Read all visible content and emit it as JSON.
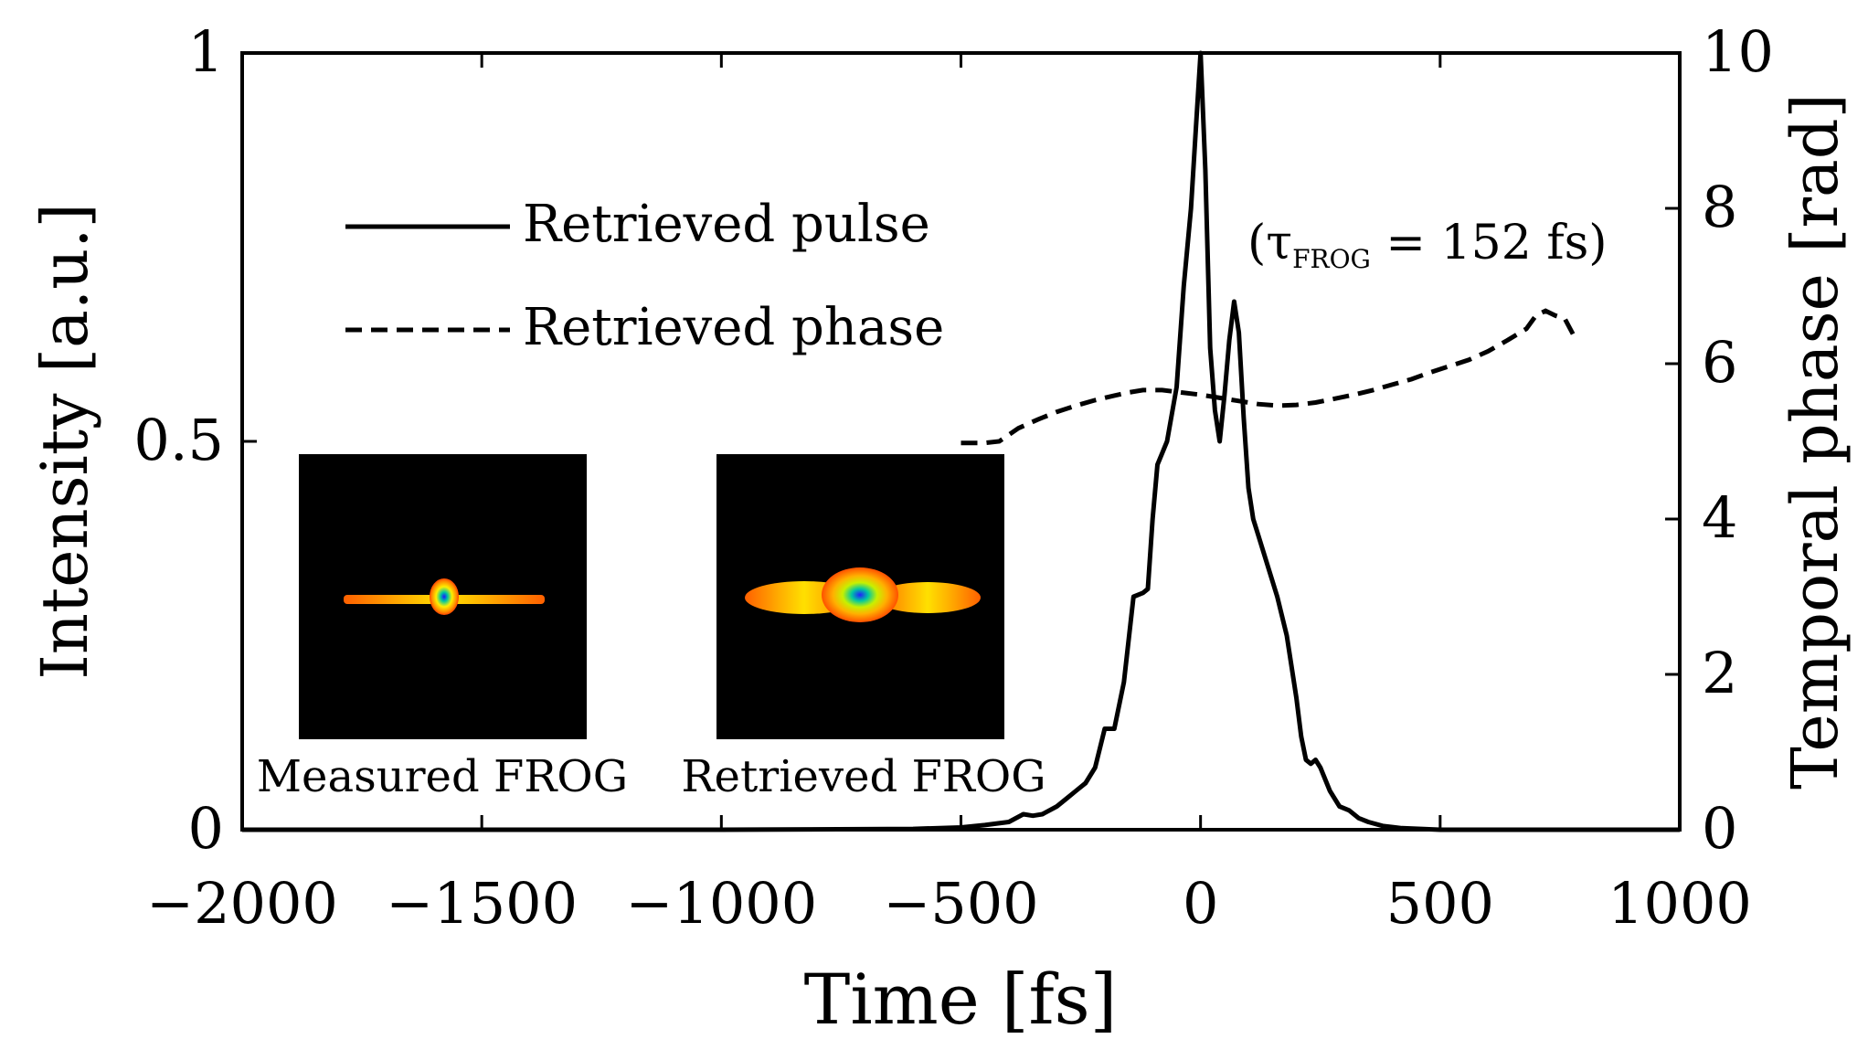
{
  "chart_data": {
    "type": "line",
    "title": "",
    "xlabel": "Time [fs]",
    "ylabel_left": "Intensity [a.u.]",
    "ylabel_right": "Temporal phase [rad]",
    "xlim": [
      -2000,
      1000
    ],
    "ylim_left": [
      0,
      1
    ],
    "ylim_right": [
      0,
      10
    ],
    "x_ticks": [
      {
        "value": -2000,
        "label": "−2000"
      },
      {
        "value": -1500,
        "label": "−1500"
      },
      {
        "value": -1000,
        "label": "−1000"
      },
      {
        "value": -500,
        "label": "−500"
      },
      {
        "value": 0,
        "label": "0"
      },
      {
        "value": 500,
        "label": "500"
      },
      {
        "value": 1000,
        "label": "1000"
      }
    ],
    "y_left_ticks": [
      {
        "value": 0,
        "label": "0"
      },
      {
        "value": 0.5,
        "label": "0.5"
      },
      {
        "value": 1,
        "label": "1"
      }
    ],
    "y_right_ticks": [
      {
        "value": 0,
        "label": "0"
      },
      {
        "value": 2,
        "label": "2"
      },
      {
        "value": 4,
        "label": "4"
      },
      {
        "value": 6,
        "label": "6"
      },
      {
        "value": 8,
        "label": "8"
      },
      {
        "value": 10,
        "label": "10"
      }
    ],
    "legend": {
      "placement": "upper-left",
      "entries": [
        {
          "label": "Retrieved pulse",
          "style": "solid"
        },
        {
          "label": "Retrieved phase",
          "style": "dashed"
        }
      ]
    },
    "annotation": {
      "prefix": "(τ",
      "subscript": "FROG",
      "suffix": " = 152 fs)"
    },
    "insets": [
      {
        "caption": "Measured FROG"
      },
      {
        "caption": "Retrieved FROG"
      }
    ],
    "series": [
      {
        "name": "Retrieved pulse",
        "axis": "left",
        "style": "solid",
        "x": [
          -2000,
          -1000,
          -600,
          -500,
          -450,
          -400,
          -370,
          -350,
          -330,
          -300,
          -280,
          -260,
          -240,
          -220,
          -200,
          -180,
          -160,
          -140,
          -120,
          -110,
          -100,
          -90,
          -70,
          -50,
          -35,
          -20,
          -10,
          0,
          10,
          20,
          30,
          40,
          50,
          60,
          70,
          80,
          90,
          100,
          110,
          120,
          140,
          160,
          180,
          200,
          210,
          220,
          230,
          240,
          250,
          270,
          290,
          310,
          330,
          350,
          380,
          420,
          460,
          500,
          700,
          1000
        ],
        "y": [
          0,
          0,
          0.001,
          0.003,
          0.006,
          0.01,
          0.02,
          0.018,
          0.02,
          0.03,
          0.04,
          0.05,
          0.06,
          0.08,
          0.13,
          0.13,
          0.19,
          0.3,
          0.305,
          0.31,
          0.4,
          0.47,
          0.5,
          0.57,
          0.7,
          0.8,
          0.9,
          1.0,
          0.85,
          0.62,
          0.54,
          0.5,
          0.56,
          0.63,
          0.68,
          0.64,
          0.53,
          0.44,
          0.4,
          0.38,
          0.34,
          0.3,
          0.25,
          0.17,
          0.12,
          0.09,
          0.085,
          0.09,
          0.08,
          0.05,
          0.03,
          0.025,
          0.015,
          0.01,
          0.005,
          0.002,
          0.001,
          0,
          0,
          0
        ]
      },
      {
        "name": "Retrieved phase",
        "axis": "right",
        "style": "dashed",
        "x": [
          -500,
          -450,
          -420,
          -380,
          -340,
          -300,
          -260,
          -220,
          -180,
          -150,
          -120,
          -80,
          -40,
          0,
          40,
          80,
          120,
          160,
          200,
          240,
          280,
          320,
          360,
          400,
          440,
          480,
          520,
          560,
          600,
          640,
          680,
          700,
          720,
          740,
          760,
          780
        ],
        "y": [
          4.98,
          4.98,
          5.0,
          5.17,
          5.28,
          5.38,
          5.46,
          5.53,
          5.59,
          5.63,
          5.66,
          5.66,
          5.63,
          5.6,
          5.56,
          5.52,
          5.48,
          5.46,
          5.47,
          5.5,
          5.55,
          5.6,
          5.66,
          5.73,
          5.8,
          5.89,
          5.97,
          6.05,
          6.16,
          6.3,
          6.45,
          6.62,
          6.68,
          6.62,
          6.58,
          6.35
        ]
      }
    ]
  }
}
